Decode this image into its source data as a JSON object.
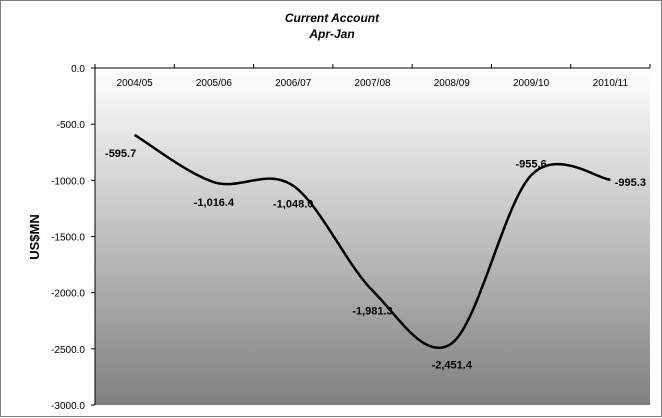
{
  "chart_data": {
    "type": "line",
    "title": "Current Account",
    "subtitle": "Apr-Jan",
    "xlabel": "",
    "ylabel": "US$MN",
    "categories": [
      "2004/05",
      "2005/06",
      "2006/07",
      "2007/08",
      "2008/09",
      "2009/10",
      "2010/11"
    ],
    "values": [
      -595.7,
      -1016.4,
      -1048.0,
      -1981.3,
      -2451.4,
      -955.6,
      -995.3
    ],
    "data_labels": [
      "-595.7",
      "-1,016.4",
      "-1,048.0",
      "-1,981.3",
      "-2,451.4",
      "-955.6",
      "-995.3"
    ],
    "ylim": [
      -3000,
      0
    ],
    "yticks": [
      0,
      -500,
      -1000,
      -1500,
      -2000,
      -2500,
      -3000
    ],
    "ytick_labels": [
      "0.0",
      "-500.0",
      "-1000.0",
      "-1500.0",
      "-2000.0",
      "-2500.0",
      "-3000.0"
    ],
    "x_axis_position": "top",
    "grid": false,
    "legend": "none",
    "line_color": "#000000",
    "background_gradient": [
      "#ffffff",
      "#808080"
    ]
  }
}
